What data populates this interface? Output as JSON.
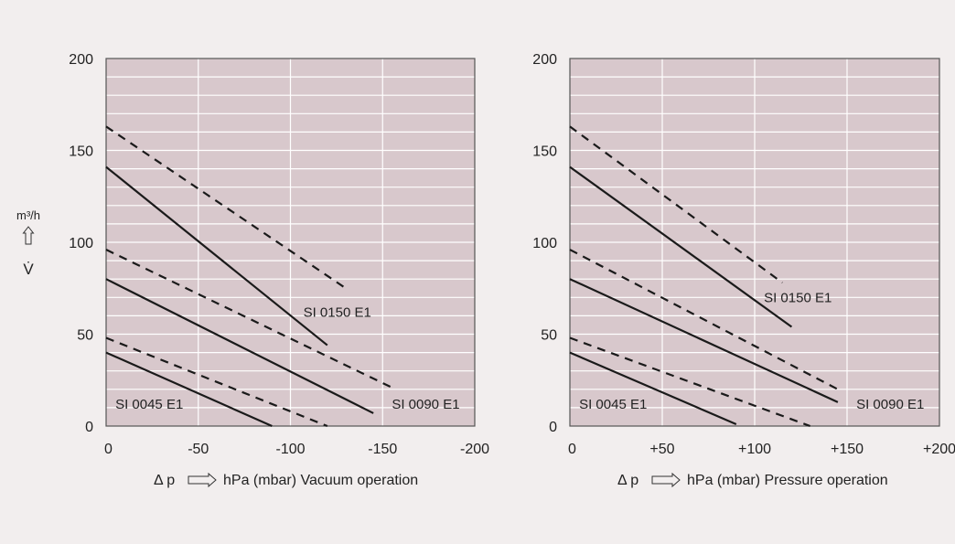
{
  "colors": {
    "page_background": "#f2eeee",
    "plot_background": "#d8c8cc",
    "grid_line": "#ffffff",
    "frame": "#555555",
    "line": "#1a1a1a"
  },
  "y_unit": {
    "label": "m³/h",
    "symbol": "V̇",
    "arrow": "up-arrow-outline"
  },
  "chart_data": [
    {
      "type": "line",
      "title": "",
      "xlabel": "Δ p ⟹ hPa (mbar) Vacuum operation",
      "xlabel_parts": {
        "delta": "Δ p",
        "unit": "hPa (mbar) Vacuum operation"
      },
      "ylabel": "m³/h V̇",
      "xlim": [
        0,
        -200
      ],
      "ylim": [
        0,
        200
      ],
      "x_ticks": [
        0,
        -50,
        -100,
        -150,
        -200
      ],
      "x_tick_labels": [
        "0",
        "-50",
        "-100",
        "-150",
        "-200"
      ],
      "y_ticks": [
        0,
        50,
        100,
        150,
        200
      ],
      "y_tick_labels": [
        "0",
        "50",
        "100",
        "150",
        "200"
      ],
      "grid": true,
      "series": [
        {
          "name": "SI 0045 E1 solid",
          "style": "solid",
          "x": [
            0,
            -90
          ],
          "y": [
            40,
            0
          ]
        },
        {
          "name": "SI 0045 E1 dashed",
          "style": "dashed",
          "x": [
            0,
            -120
          ],
          "y": [
            48,
            0
          ]
        },
        {
          "name": "SI 0090 E1 solid",
          "style": "solid",
          "x": [
            0,
            -145
          ],
          "y": [
            80,
            7
          ]
        },
        {
          "name": "SI 0090 E1 dashed",
          "style": "dashed",
          "x": [
            0,
            -155
          ],
          "y": [
            96,
            21
          ]
        },
        {
          "name": "SI 0150 E1 solid",
          "style": "solid",
          "x": [
            0,
            -120
          ],
          "y": [
            141,
            44
          ]
        },
        {
          "name": "SI 0150 E1 dashed",
          "style": "dashed",
          "x": [
            0,
            -130
          ],
          "y": [
            163,
            75
          ]
        }
      ],
      "annotations": [
        {
          "text": "SI 0045 E1",
          "x": -5,
          "y": 12
        },
        {
          "text": "SI 0090 E1",
          "x": -155,
          "y": 12
        },
        {
          "text": "SI 0150 E1",
          "x": -107,
          "y": 62
        }
      ]
    },
    {
      "type": "line",
      "title": "",
      "xlabel": "Δ p ⟹ hPa (mbar) Pressure operation",
      "xlabel_parts": {
        "delta": "Δ p",
        "unit": "hPa (mbar) Pressure operation"
      },
      "ylabel": "",
      "xlim": [
        0,
        200
      ],
      "ylim": [
        0,
        200
      ],
      "x_ticks": [
        0,
        50,
        100,
        150,
        200
      ],
      "x_tick_labels": [
        "0",
        "+50",
        "+100",
        "+150",
        "+200"
      ],
      "y_ticks": [
        0,
        50,
        100,
        150,
        200
      ],
      "y_tick_labels": [
        "0",
        "50",
        "100",
        "150",
        "200"
      ],
      "grid": true,
      "series": [
        {
          "name": "SI 0045 E1 solid",
          "style": "solid",
          "x": [
            0,
            90
          ],
          "y": [
            40,
            1
          ]
        },
        {
          "name": "SI 0045 E1 dashed",
          "style": "dashed",
          "x": [
            0,
            130
          ],
          "y": [
            48,
            0
          ]
        },
        {
          "name": "SI 0090 E1 solid",
          "style": "solid",
          "x": [
            0,
            145
          ],
          "y": [
            80,
            13
          ]
        },
        {
          "name": "SI 0090 E1 dashed",
          "style": "dashed",
          "x": [
            0,
            145
          ],
          "y": [
            96,
            20
          ]
        },
        {
          "name": "SI 0150 E1 solid",
          "style": "solid",
          "x": [
            0,
            120
          ],
          "y": [
            141,
            54
          ]
        },
        {
          "name": "SI 0150 E1 dashed",
          "style": "dashed",
          "x": [
            0,
            115
          ],
          "y": [
            163,
            78
          ]
        }
      ],
      "annotations": [
        {
          "text": "SI 0045 E1",
          "x": 5,
          "y": 12
        },
        {
          "text": "SI 0090 E1",
          "x": 155,
          "y": 12
        },
        {
          "text": "SI 0150 E1",
          "x": 105,
          "y": 70
        }
      ]
    }
  ]
}
